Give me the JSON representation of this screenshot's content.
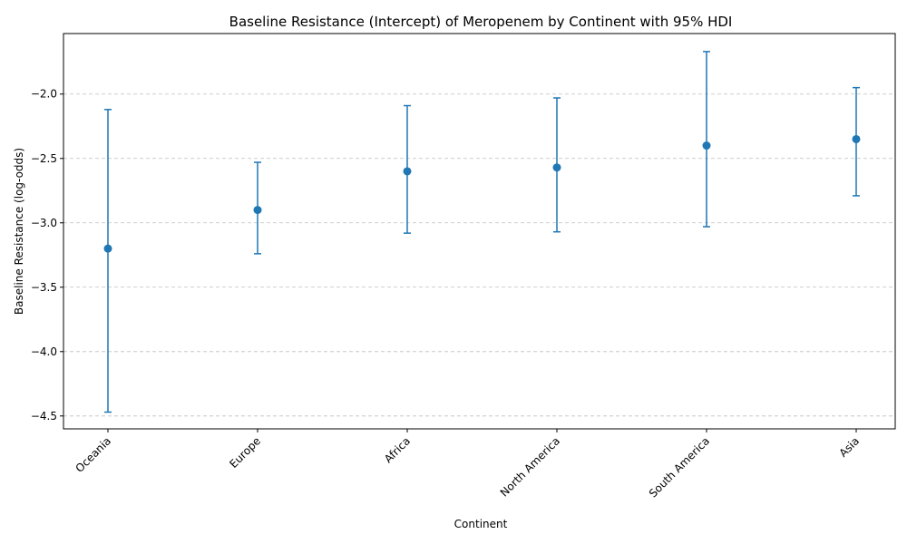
{
  "chart_data": {
    "type": "scatter",
    "title": "Baseline Resistance (Intercept) of Meropenem by Continent with 95% HDI",
    "xlabel": "Continent",
    "ylabel": "Baseline Resistance (log-odds)",
    "categories": [
      "Oceania",
      "Europe",
      "Africa",
      "North America",
      "South America",
      "Asia"
    ],
    "values": [
      -3.2,
      -2.9,
      -2.6,
      -2.57,
      -2.4,
      -2.35
    ],
    "hdi_lower": [
      -4.47,
      -3.24,
      -3.08,
      -3.07,
      -3.03,
      -2.79
    ],
    "hdi_upper": [
      -2.12,
      -2.53,
      -2.09,
      -2.03,
      -1.67,
      -1.95
    ],
    "ylim": [
      -4.6,
      -1.53
    ],
    "yticks": [
      -4.5,
      -4.0,
      -3.5,
      -3.0,
      -2.5,
      -2.0
    ],
    "ytick_labels": [
      "−4.5",
      "−4.0",
      "−3.5",
      "−3.0",
      "−2.5",
      "−2.0"
    ],
    "grid": "y",
    "color": "#1f77b4"
  }
}
